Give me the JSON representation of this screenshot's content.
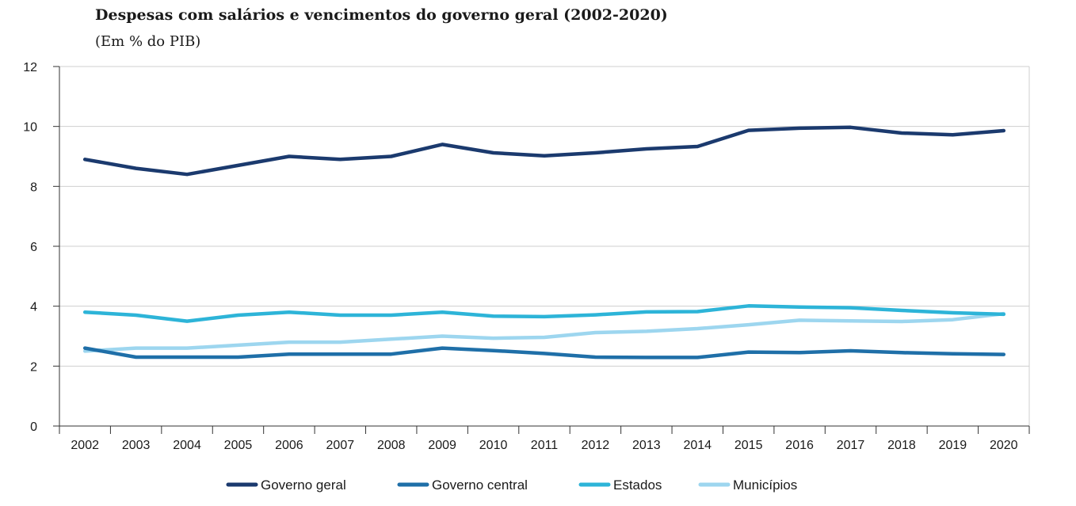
{
  "chart_data": {
    "type": "line",
    "title": "Despesas com salários e vencimentos do governo geral (2002-2020)",
    "subtitle": "(Em % do PIB)",
    "x": [
      "2002",
      "2003",
      "2004",
      "2005",
      "2006",
      "2007",
      "2008",
      "2009",
      "2010",
      "2011",
      "2012",
      "2013",
      "2014",
      "2015",
      "2016",
      "2017",
      "2018",
      "2019",
      "2020"
    ],
    "ylim": [
      0,
      12
    ],
    "yticks": [
      0,
      2,
      4,
      6,
      8,
      10,
      12
    ],
    "grid": true,
    "legend_position": "bottom",
    "series": [
      {
        "name": "Governo geral",
        "color": "#1b3a6e",
        "values": [
          8.9,
          8.6,
          8.4,
          8.7,
          9.0,
          8.9,
          9.0,
          9.4,
          9.12,
          9.02,
          9.12,
          9.25,
          9.33,
          9.87,
          9.94,
          9.97,
          9.78,
          9.72,
          9.86
        ]
      },
      {
        "name": "Governo central",
        "color": "#1f6fa8",
        "values": [
          2.6,
          2.3,
          2.3,
          2.3,
          2.4,
          2.4,
          2.4,
          2.6,
          2.52,
          2.42,
          2.3,
          2.29,
          2.29,
          2.47,
          2.45,
          2.51,
          2.45,
          2.41,
          2.39
        ]
      },
      {
        "name": "Estados",
        "color": "#2db4d8",
        "values": [
          3.8,
          3.7,
          3.5,
          3.7,
          3.8,
          3.7,
          3.7,
          3.8,
          3.67,
          3.65,
          3.71,
          3.81,
          3.82,
          4.01,
          3.97,
          3.95,
          3.86,
          3.78,
          3.73
        ]
      },
      {
        "name": "Municípios",
        "color": "#9dd6ef",
        "values": [
          2.5,
          2.6,
          2.6,
          2.7,
          2.8,
          2.8,
          2.9,
          3.0,
          2.93,
          2.96,
          3.12,
          3.16,
          3.25,
          3.38,
          3.53,
          3.51,
          3.49,
          3.55,
          3.75
        ]
      }
    ]
  }
}
